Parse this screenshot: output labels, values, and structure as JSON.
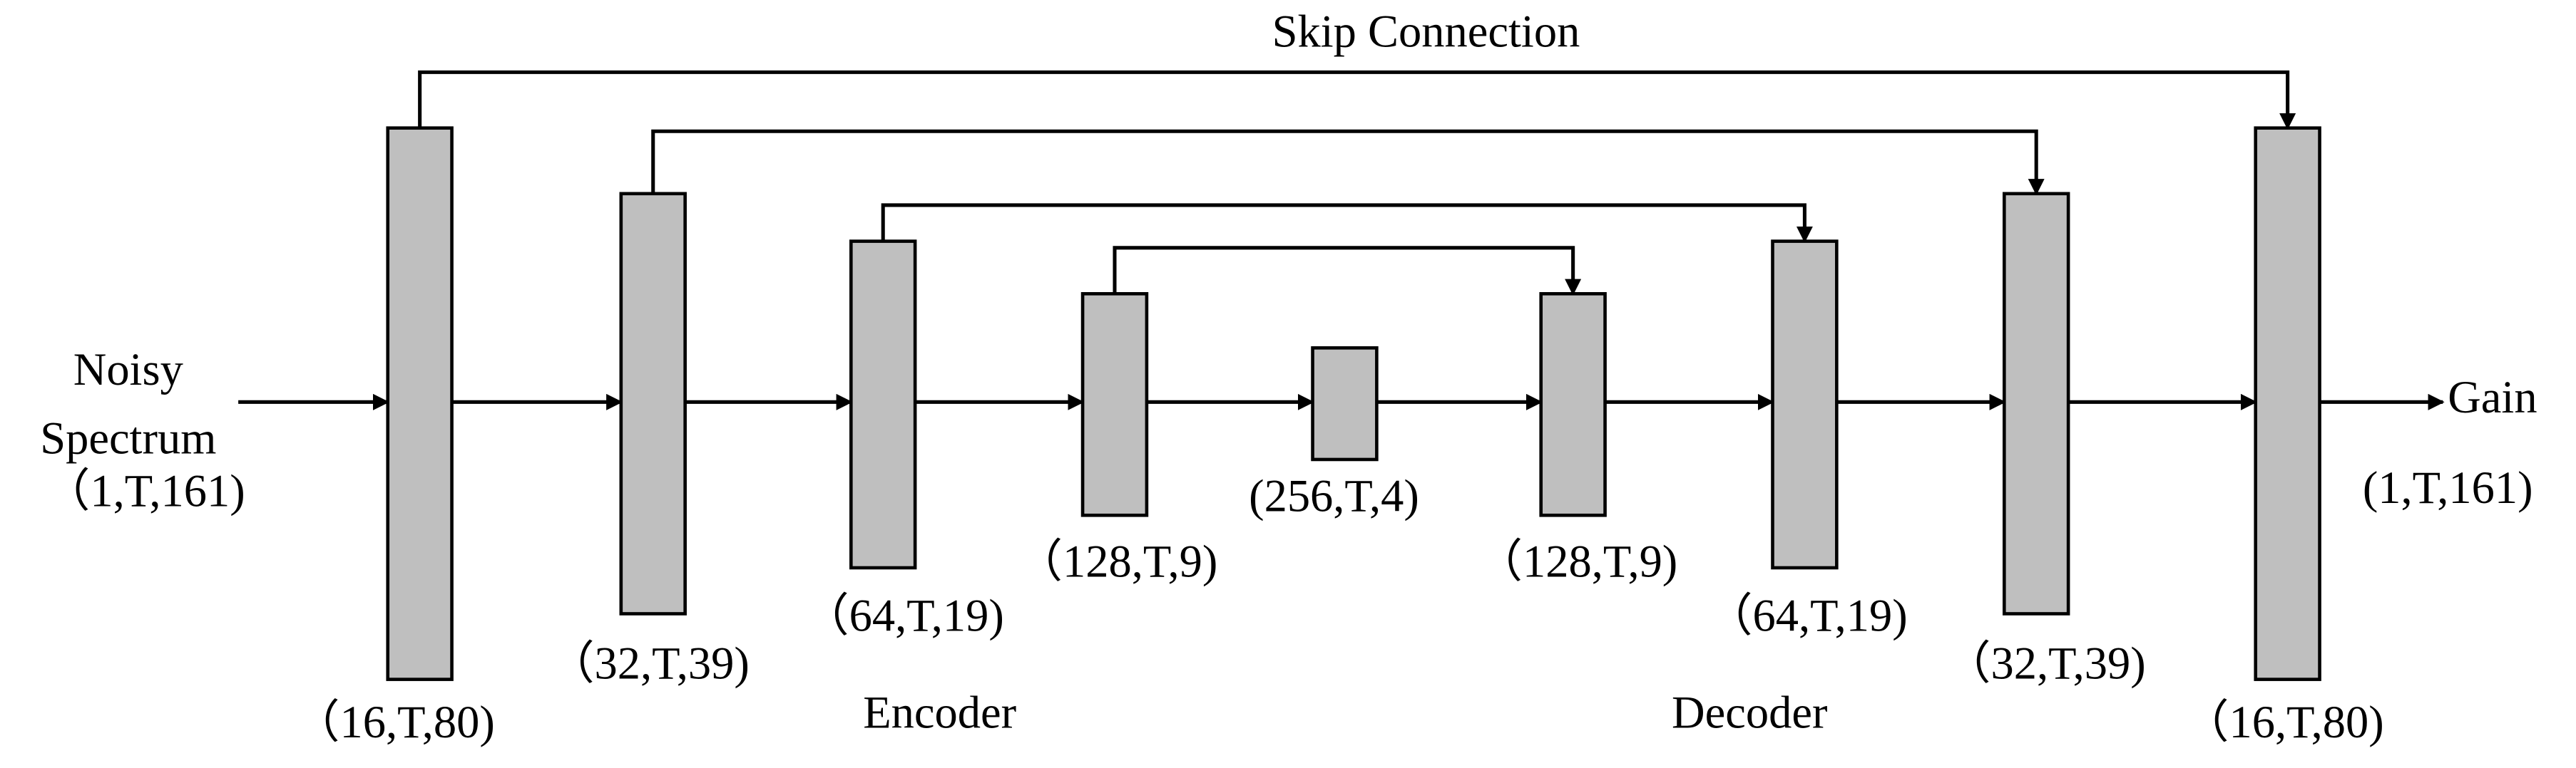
{
  "title": "Skip Connection",
  "input": {
    "lines": [
      "Noisy",
      "Spectrum"
    ],
    "shape": "（1,T,161)"
  },
  "output": {
    "label": "Gain",
    "shape": "(1,T,161)"
  },
  "blocks": [
    {
      "shape": "（16,T,80)"
    },
    {
      "shape": "（32,T,39)"
    },
    {
      "shape": "（64,T,19)"
    },
    {
      "shape": "（128,T,9)"
    },
    {
      "shape": "(256,T,4)"
    },
    {
      "shape": "（128,T,9)"
    },
    {
      "shape": "（64,T,19)"
    },
    {
      "shape": "（32,T,39)"
    },
    {
      "shape": "（16,T,80)"
    }
  ],
  "sections": [
    "Encoder",
    "Decoder"
  ]
}
